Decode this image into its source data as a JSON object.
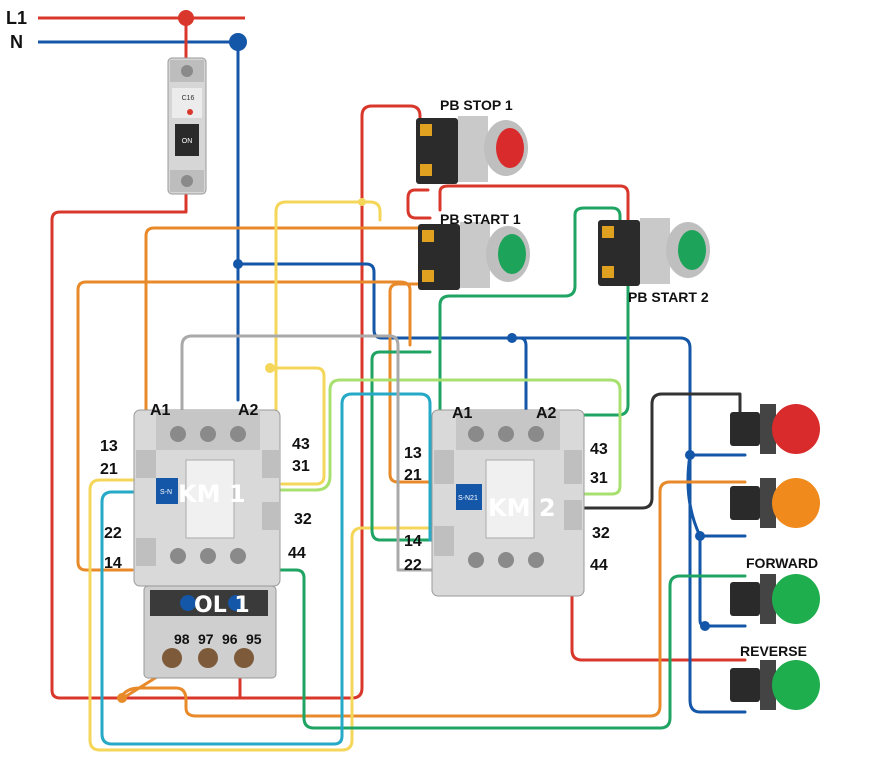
{
  "supply": {
    "l1": "L1",
    "n": "N"
  },
  "breaker": {
    "rating": "C16",
    "switch": "ON"
  },
  "pushbuttons": {
    "stop1": "PB STOP 1",
    "start1": "PB START 1",
    "start2": "PB START 2"
  },
  "km1": {
    "name": "KM 1",
    "a1": "A1",
    "a2": "A2",
    "t13": "13",
    "t21": "21",
    "t22": "22",
    "t14": "14",
    "t43": "43",
    "t31": "31",
    "t32": "32",
    "t44": "44",
    "model": "S-N"
  },
  "km2": {
    "name": "KM 2",
    "a1": "A1",
    "a2": "A2",
    "t13": "13",
    "t21": "21",
    "t14": "14",
    "t22": "22",
    "t43": "43",
    "t31": "31",
    "t32": "32",
    "t44": "44",
    "model": "S-N21"
  },
  "overload": {
    "name": "OL 1",
    "t98": "98",
    "t97": "97",
    "t96": "96",
    "t95": "95"
  },
  "lamps": {
    "forward": "FORWARD",
    "reverse": "REVERSE"
  },
  "colors": {
    "red": "#d9372b",
    "blue": "#1456a8",
    "orange": "#e88a2a",
    "yellow": "#f4d75a",
    "green": "#1fa463",
    "lightgreen": "#a8e070",
    "gray": "#a9a9a9",
    "black": "#333333"
  }
}
